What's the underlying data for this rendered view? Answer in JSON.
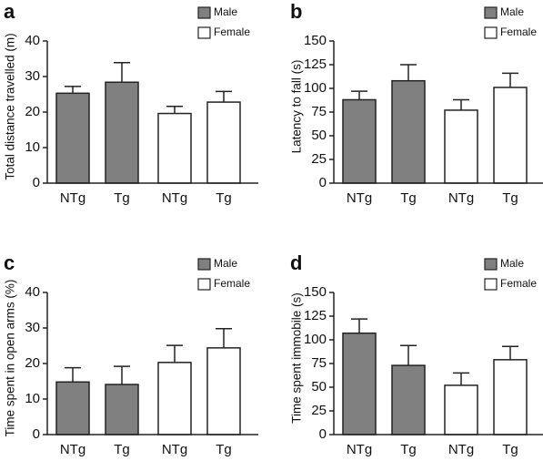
{
  "chart_data": [
    {
      "type": "bar",
      "label": "a",
      "ylabel": "Total distance travelled (m)",
      "categories": [
        "NTg",
        "Tg",
        "NTg",
        "Tg"
      ],
      "series": [
        {
          "name": "Male",
          "color": "#808080",
          "values": [
            25.3,
            28.4,
            null,
            null
          ],
          "errors": [
            1.9,
            5.5,
            null,
            null
          ]
        },
        {
          "name": "Female",
          "color": "#ffffff",
          "values": [
            null,
            null,
            19.6,
            22.8
          ],
          "errors": [
            null,
            null,
            2.0,
            3.0
          ]
        }
      ],
      "ylim": [
        0,
        40
      ],
      "yticks": [
        0,
        10,
        20,
        30,
        40
      ]
    },
    {
      "type": "bar",
      "label": "b",
      "ylabel": "Latency to fall (s)",
      "categories": [
        "NTg",
        "Tg",
        "NTg",
        "Tg"
      ],
      "series": [
        {
          "name": "Male",
          "color": "#808080",
          "values": [
            88,
            108,
            null,
            null
          ],
          "errors": [
            9,
            17,
            null,
            null
          ]
        },
        {
          "name": "Female",
          "color": "#ffffff",
          "values": [
            null,
            null,
            77,
            101
          ],
          "errors": [
            null,
            null,
            11,
            15
          ]
        }
      ],
      "ylim": [
        0,
        150
      ],
      "yticks": [
        0,
        25,
        50,
        75,
        100,
        125,
        150
      ]
    },
    {
      "type": "bar",
      "label": "c",
      "ylabel": "Time spent in open arms (%)",
      "categories": [
        "NTg",
        "Tg",
        "NTg",
        "Tg"
      ],
      "series": [
        {
          "name": "Male",
          "color": "#808080",
          "values": [
            14.8,
            14.1,
            null,
            null
          ],
          "errors": [
            4.0,
            5.1,
            null,
            null
          ]
        },
        {
          "name": "Female",
          "color": "#ffffff",
          "values": [
            null,
            null,
            20.3,
            24.4
          ],
          "errors": [
            null,
            null,
            4.8,
            5.4
          ]
        }
      ],
      "ylim": [
        0,
        40
      ],
      "yticks": [
        0,
        10,
        20,
        30,
        40
      ]
    },
    {
      "type": "bar",
      "label": "d",
      "ylabel": "Time spent immobile (s)",
      "categories": [
        "NTg",
        "Tg",
        "NTg",
        "Tg"
      ],
      "series": [
        {
          "name": "Male",
          "color": "#808080",
          "values": [
            107,
            73,
            null,
            null
          ],
          "errors": [
            15,
            21,
            null,
            null
          ]
        },
        {
          "name": "Female",
          "color": "#ffffff",
          "values": [
            null,
            null,
            52,
            79
          ],
          "errors": [
            null,
            null,
            13,
            14
          ]
        }
      ],
      "ylim": [
        0,
        150
      ],
      "yticks": [
        0,
        25,
        50,
        75,
        100,
        125,
        150
      ]
    }
  ]
}
